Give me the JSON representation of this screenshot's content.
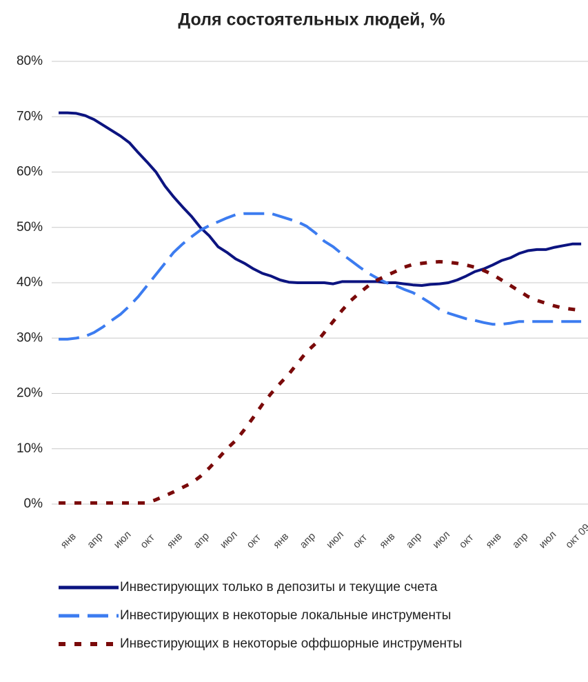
{
  "chart_data": {
    "type": "line",
    "title": "Доля состоятельных людей, %",
    "categories": [
      "янв",
      null,
      null,
      "апр",
      null,
      null,
      "июл",
      null,
      null,
      "окт",
      null,
      null,
      "янв",
      null,
      null,
      "апр",
      null,
      null,
      "июл",
      null,
      null,
      "окт",
      null,
      null,
      "янв",
      null,
      null,
      "апр",
      null,
      null,
      "июл",
      null,
      null,
      "окт",
      null,
      null,
      "янв",
      null,
      null,
      "апр",
      null,
      null,
      "июл",
      null,
      null,
      "окт",
      null,
      null,
      "янв",
      null,
      null,
      "апр",
      null,
      null,
      "июл",
      null,
      null,
      "окт 09",
      null,
      null
    ],
    "series": [
      {
        "name": "Инвестирующих только в депозиты и текущие счета",
        "color": "#0c1480",
        "style": "solid",
        "values": [
          70.7,
          70.7,
          70.6,
          70.2,
          69.5,
          68.5,
          67.5,
          66.5,
          65.3,
          63.5,
          61.8,
          60,
          57.5,
          55.5,
          53.7,
          52,
          50,
          48.5,
          46.5,
          45.5,
          44.3,
          43.5,
          42.5,
          41.7,
          41.2,
          40.5,
          40.1,
          40,
          40,
          40,
          40,
          39.8,
          40.2,
          40.2,
          40.2,
          40.2,
          40.2,
          40,
          40,
          39.8,
          39.6,
          39.5,
          39.7,
          39.8,
          40,
          40.5,
          41.2,
          42,
          42.5,
          43.2,
          44,
          44.5,
          45.3,
          45.8,
          46,
          46,
          46.4,
          46.7,
          47,
          47
        ]
      },
      {
        "name": "Инвестирующих в некоторые локальные инструменты",
        "color": "#3c7cf0",
        "style": "dashed",
        "values": [
          29.8,
          29.8,
          30,
          30.3,
          31,
          32,
          33.2,
          34.3,
          35.8,
          37.5,
          39.5,
          41.5,
          43.5,
          45.5,
          47,
          48.3,
          49.5,
          50.3,
          51,
          51.7,
          52.3,
          52.5,
          52.5,
          52.5,
          52.5,
          52,
          51.5,
          51,
          50.2,
          49,
          47.5,
          46.5,
          45.2,
          44,
          42.8,
          41.7,
          40.8,
          40,
          39.5,
          38.8,
          38.2,
          37.3,
          36.3,
          35.2,
          34.5,
          34,
          33.5,
          33.2,
          32.8,
          32.5,
          32.5,
          32.7,
          33,
          33,
          33,
          33,
          33,
          33,
          33,
          33
        ]
      },
      {
        "name": "Инвестирующих в некоторые оффшорные инструменты",
        "color": "#7a0a0a",
        "style": "dotted",
        "values": [
          0.2,
          0.2,
          0.2,
          0.2,
          0.2,
          0.2,
          0.2,
          0.2,
          0.2,
          0.2,
          0.2,
          0.8,
          1.5,
          2.2,
          3,
          3.8,
          5,
          6.5,
          8.2,
          10,
          11.5,
          13.5,
          15.7,
          18,
          20,
          21.8,
          23.5,
          25.5,
          27.5,
          29,
          31,
          33,
          35,
          36.8,
          38.2,
          39.5,
          40.5,
          41.3,
          42,
          42.8,
          43.3,
          43.5,
          43.7,
          43.8,
          43.7,
          43.5,
          43.2,
          42.8,
          42.2,
          41.5,
          40.5,
          39.5,
          38.5,
          37.5,
          36.8,
          36.3,
          35.8,
          35.4,
          35.2,
          35
        ]
      }
    ],
    "ylim": [
      0,
      80
    ],
    "yticks": [
      {
        "value": 0,
        "label": "0%"
      },
      {
        "value": 10,
        "label": "10%"
      },
      {
        "value": 20,
        "label": "20%"
      },
      {
        "value": 30,
        "label": "30%"
      },
      {
        "value": 40,
        "label": "40%"
      },
      {
        "value": 50,
        "label": "50%"
      },
      {
        "value": 60,
        "label": "60%"
      },
      {
        "value": 70,
        "label": "70%"
      },
      {
        "value": 80,
        "label": "80%"
      }
    ],
    "grid": true,
    "legend": "bottom"
  }
}
